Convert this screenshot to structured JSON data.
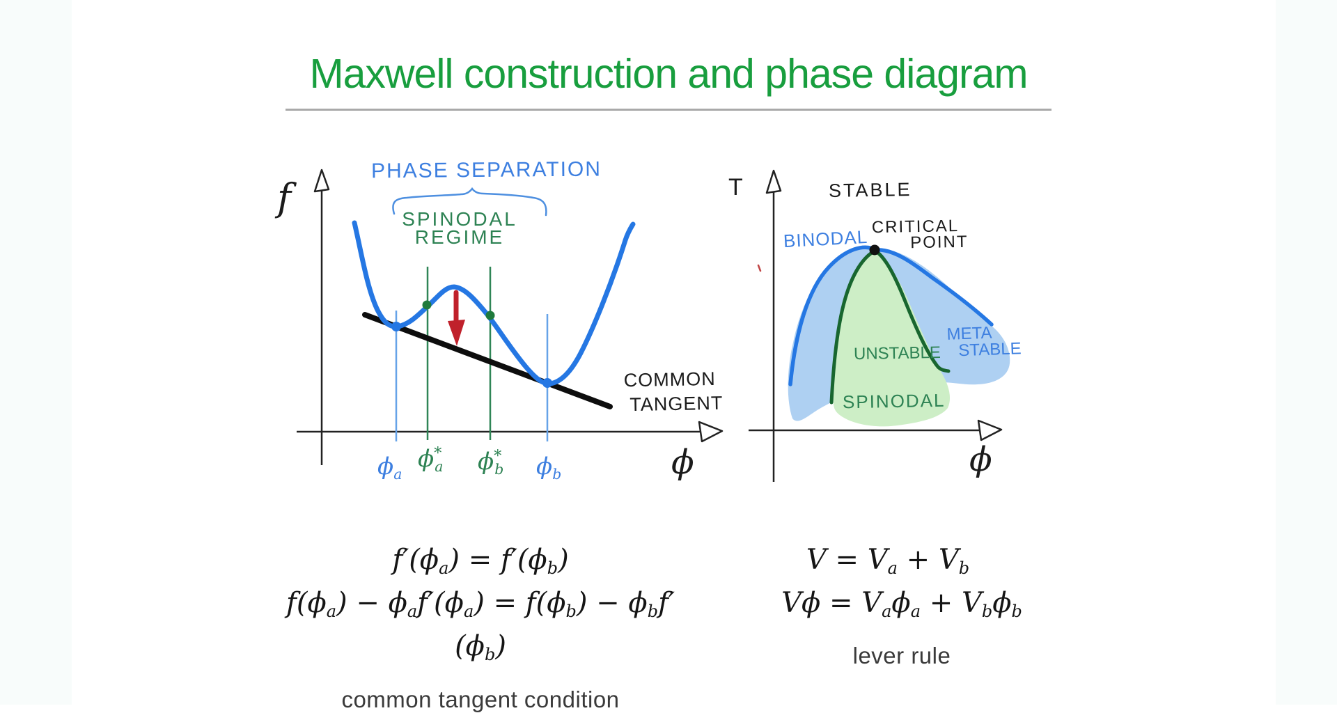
{
  "slide": {
    "title": "Maxwell construction and phase diagram"
  },
  "left_plot": {
    "axis": {
      "y_label": "f",
      "x_label": "ϕ"
    },
    "annotations": {
      "phase_separation": "PHASE SEPARATION",
      "spinodal_line1": "SPINODAL",
      "spinodal_line2": "REGIME",
      "common_line1": "COMMON",
      "common_line2": "TANGENT"
    },
    "ticks": {
      "phi_a": [
        {
          "t": "ϕ"
        },
        {
          "t": "a",
          "s": "sub"
        }
      ],
      "phi_a_star": [
        {
          "t": "ϕ"
        },
        {
          "t": "*",
          "s": "sup"
        },
        {
          "t": "a",
          "s": "sub"
        }
      ],
      "phi_b_star": [
        {
          "t": "ϕ"
        },
        {
          "t": "*",
          "s": "sup"
        },
        {
          "t": "b",
          "s": "sub"
        }
      ],
      "phi_b": [
        {
          "t": "ϕ"
        },
        {
          "t": "b",
          "s": "sub"
        }
      ]
    }
  },
  "right_plot": {
    "axis": {
      "y_label": "T",
      "x_label": "ϕ"
    },
    "labels": {
      "stable": "STABLE",
      "critical_line1": "CRITICAL",
      "critical_line2": "POINT",
      "binodal": "BINODAL",
      "unstable": "UNSTABLE",
      "meta_line1": "META",
      "meta_line2": "STABLE",
      "spinodal": "SPINODAL"
    }
  },
  "equations": {
    "common_tangent": {
      "line1": [
        {
          "t": "f′(ϕ"
        },
        {
          "t": "a",
          "s": "sub"
        },
        {
          "t": ") = f′(ϕ"
        },
        {
          "t": "b",
          "s": "sub"
        },
        {
          "t": ")"
        }
      ],
      "line2": [
        {
          "t": "f(ϕ"
        },
        {
          "t": "a",
          "s": "sub"
        },
        {
          "t": ") − ϕ"
        },
        {
          "t": "a",
          "s": "sub"
        },
        {
          "t": "f′(ϕ"
        },
        {
          "t": "a",
          "s": "sub"
        },
        {
          "t": ") = f(ϕ"
        },
        {
          "t": "b",
          "s": "sub"
        },
        {
          "t": ") − ϕ"
        },
        {
          "t": "b",
          "s": "sub"
        },
        {
          "t": "f′(ϕ"
        },
        {
          "t": "b",
          "s": "sub"
        },
        {
          "t": ")"
        }
      ],
      "caption": "common tangent condition"
    },
    "lever_rule": {
      "line1": [
        {
          "t": "V = V"
        },
        {
          "t": "a",
          "s": "sub"
        },
        {
          "t": " + V"
        },
        {
          "t": "b",
          "s": "sub"
        }
      ],
      "line2": [
        {
          "t": "Vϕ = V"
        },
        {
          "t": "a",
          "s": "sub"
        },
        {
          "t": "ϕ"
        },
        {
          "t": "a",
          "s": "sub"
        },
        {
          "t": " + V"
        },
        {
          "t": "b",
          "s": "sub"
        },
        {
          "t": "ϕ"
        },
        {
          "t": "b",
          "s": "sub"
        }
      ],
      "caption": "lever rule"
    }
  },
  "colors": {
    "title_green": "#189e3e",
    "rule_gray": "#a9a9a9",
    "ink_black": "#1b1b1b",
    "pen_blue": "#3d7fe0",
    "pen_green": "#2d8253",
    "curve_blue": "#2577e3",
    "spinodal_dark_green": "#18662f",
    "fill_light_blue": "#aed0f2",
    "fill_light_green": "#cdeec6",
    "arrow_red": "#c0212b",
    "tangent_black": "#0d0d0d"
  }
}
